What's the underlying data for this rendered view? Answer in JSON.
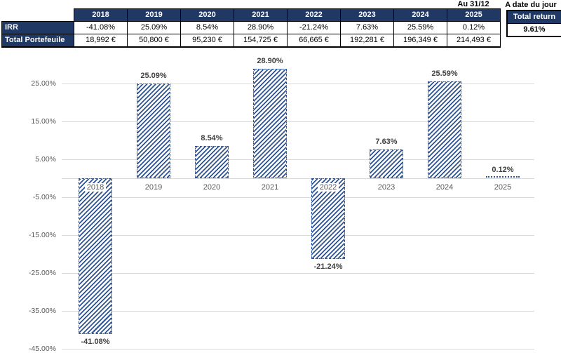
{
  "captions": {
    "as_of_label": "Au 31/12",
    "today_label": "A date du jour"
  },
  "total_return": {
    "label": "Total return",
    "value": "9.61%"
  },
  "table": {
    "years": [
      "2018",
      "2019",
      "2020",
      "2021",
      "2022",
      "2023",
      "2024",
      "2025"
    ],
    "rows": [
      {
        "label": "IRR",
        "values": [
          "-41.08%",
          "25.09%",
          "8.54%",
          "28.90%",
          "-21.24%",
          "7.63%",
          "25.59%",
          "0.12%"
        ]
      },
      {
        "label": "Total Portefeuile",
        "values": [
          "18,992 €",
          "50,800 €",
          "95,230 €",
          "154,725 €",
          "66,665 €",
          "192,281 €",
          "196,349 €",
          "214,493 €"
        ]
      }
    ]
  },
  "chart_data": {
    "type": "bar",
    "title": "",
    "xlabel": "",
    "ylabel": "",
    "categories": [
      "2018",
      "2019",
      "2020",
      "2021",
      "2022",
      "2023",
      "2024",
      "2025"
    ],
    "values": [
      -41.08,
      25.09,
      8.54,
      28.9,
      -21.24,
      7.63,
      25.59,
      0.12
    ],
    "value_labels": [
      "-41.08%",
      "25.09%",
      "8.54%",
      "28.90%",
      "-21.24%",
      "7.63%",
      "25.59%",
      "0.12%"
    ],
    "ylim": [
      -45,
      30
    ],
    "yticks": [
      25,
      15,
      5,
      -5,
      -15,
      -25,
      -35,
      -45
    ],
    "ytick_labels": [
      "25.00%",
      "15.00%",
      "5.00%",
      "-5.00%",
      "-15.00%",
      "-25.00%",
      "-35.00%",
      "-45.00%"
    ],
    "grid": true,
    "legend": "none",
    "bar_style": "diagonal-hatch",
    "bar_color": "#2F5496"
  },
  "colors": {
    "header_navy": "#1F3864",
    "bar_navy": "#2F5496",
    "gridline": "#D9D9D9",
    "axis_text": "#595959",
    "data_label_text": "#404040"
  }
}
